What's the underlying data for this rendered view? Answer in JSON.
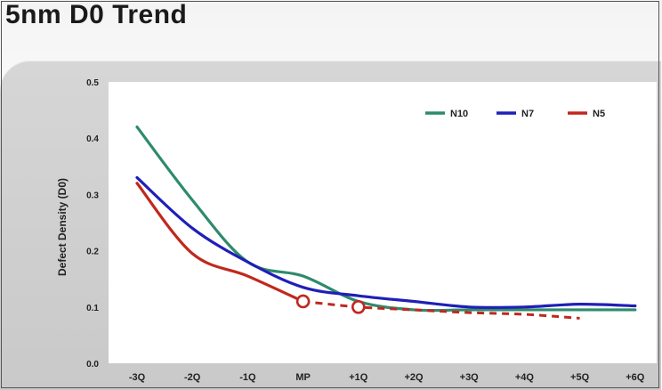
{
  "page": {
    "title": "5nm D0 Trend"
  },
  "chart_data": {
    "type": "line",
    "title": "",
    "xlabel": "",
    "ylabel": "Defect Density (D0)",
    "categories": [
      "-3Q",
      "-2Q",
      "-1Q",
      "MP",
      "+1Q",
      "+2Q",
      "+3Q",
      "+4Q",
      "+5Q",
      "+6Q"
    ],
    "y_ticks": [
      "0.0",
      "0.1",
      "0.2",
      "0.3",
      "0.4",
      "0.5"
    ],
    "ylim": [
      0,
      0.5
    ],
    "grid": false,
    "legend_position": "top-right",
    "series": [
      {
        "name": "N10",
        "color": "#2e8b6b",
        "values": [
          0.42,
          0.29,
          0.18,
          0.155,
          0.11,
          0.095,
          0.095,
          0.095,
          0.095,
          0.095
        ]
      },
      {
        "name": "N7",
        "color": "#1f1fb8",
        "values": [
          0.33,
          0.24,
          0.18,
          0.135,
          0.12,
          0.11,
          0.1,
          0.1,
          0.105,
          0.102
        ]
      },
      {
        "name": "N5",
        "color": "#c0281e",
        "values": [
          0.32,
          0.195,
          0.155,
          0.11,
          0.1,
          0.095,
          0.09,
          0.087,
          0.08,
          null
        ],
        "actual_through": "MP",
        "projected_after": "MP",
        "markers": [
          "MP",
          "+1Q"
        ]
      }
    ]
  }
}
